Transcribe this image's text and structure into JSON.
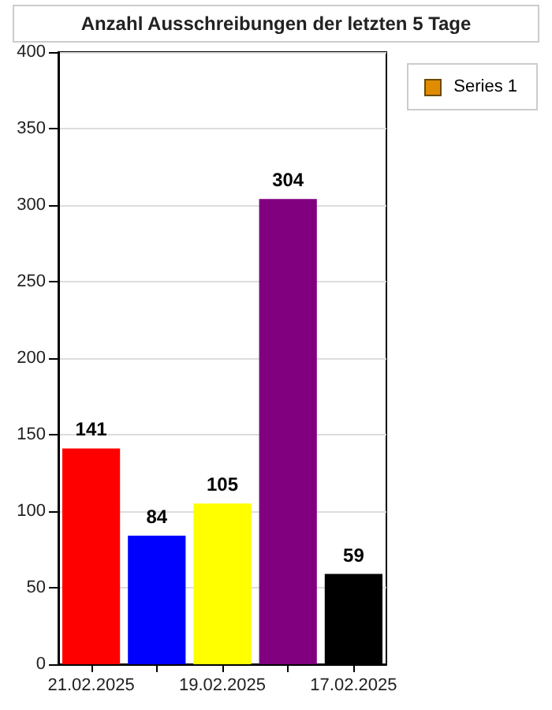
{
  "chart_data": {
    "type": "bar",
    "title": "Anzahl Ausschreibungen der letzten 5 Tage",
    "categories": [
      "21.02.2025",
      null,
      "19.02.2025",
      null,
      "17.02.2025"
    ],
    "series": [
      {
        "name": "Series 1",
        "color": "#e08c00",
        "values": [
          141,
          84,
          105,
          304,
          59
        ],
        "colors": [
          "#ff0000",
          "#0000ff",
          "#ffff00",
          "#800080",
          "#000000"
        ]
      }
    ],
    "ylim": [
      0,
      400
    ],
    "yticks": [
      0,
      50,
      100,
      150,
      200,
      250,
      300,
      350,
      400
    ],
    "grid": "y",
    "legend": "top right",
    "data_labels": true
  }
}
